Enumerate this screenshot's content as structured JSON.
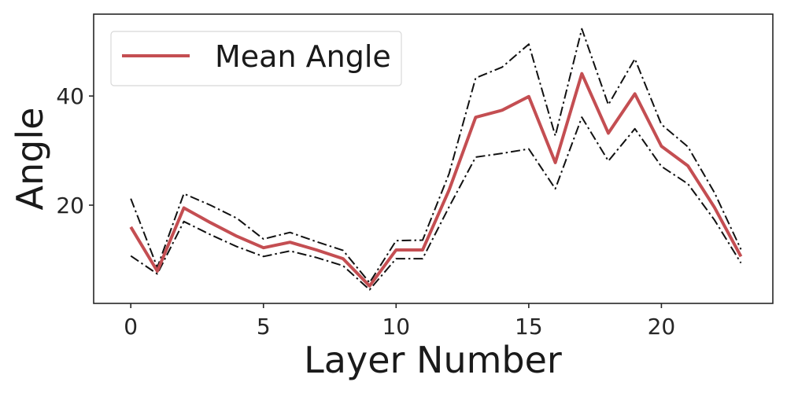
{
  "chart_data": {
    "type": "line",
    "xlabel": "Layer Number",
    "ylabel": "Angle",
    "x": [
      0,
      1,
      2,
      3,
      4,
      5,
      6,
      7,
      8,
      9,
      10,
      11,
      12,
      13,
      14,
      15,
      16,
      17,
      18,
      19,
      20,
      21,
      22,
      23
    ],
    "xlim": [
      -1.4,
      24.2
    ],
    "ylim": [
      2.0,
      55.0
    ],
    "xticks": [
      0,
      5,
      10,
      15,
      20
    ],
    "yticks": [
      20,
      40
    ],
    "series": [
      {
        "name": "Mean Angle",
        "color": "#c44e52",
        "style": "solid",
        "values": [
          16.0,
          7.9,
          19.5,
          16.8,
          14.3,
          12.2,
          13.2,
          11.8,
          10.2,
          5.2,
          11.8,
          11.8,
          22.8,
          36.1,
          37.4,
          39.9,
          27.8,
          44.1,
          33.2,
          40.4,
          30.8,
          27.2,
          19.6,
          10.6
        ]
      },
      {
        "color": "#111111",
        "style": "dashdot",
        "values": [
          21.2,
          8.6,
          22.1,
          20.0,
          17.6,
          13.8,
          15.0,
          13.3,
          11.7,
          5.8,
          13.5,
          13.6,
          25.8,
          43.3,
          45.3,
          49.5,
          32.7,
          52.3,
          38.4,
          46.8,
          34.8,
          30.7,
          22.3,
          11.9
        ]
      },
      {
        "color": "#111111",
        "style": "dashdot",
        "values": [
          10.7,
          7.4,
          17.0,
          14.6,
          12.4,
          10.6,
          11.6,
          10.4,
          8.9,
          4.5,
          10.2,
          10.2,
          19.7,
          28.8,
          29.5,
          30.3,
          23.0,
          36.1,
          28.1,
          34.0,
          27.1,
          23.9,
          17.3,
          9.4
        ]
      }
    ],
    "legend": {
      "position": "top-left",
      "entries": [
        "Mean Angle"
      ]
    },
    "grid": false
  }
}
